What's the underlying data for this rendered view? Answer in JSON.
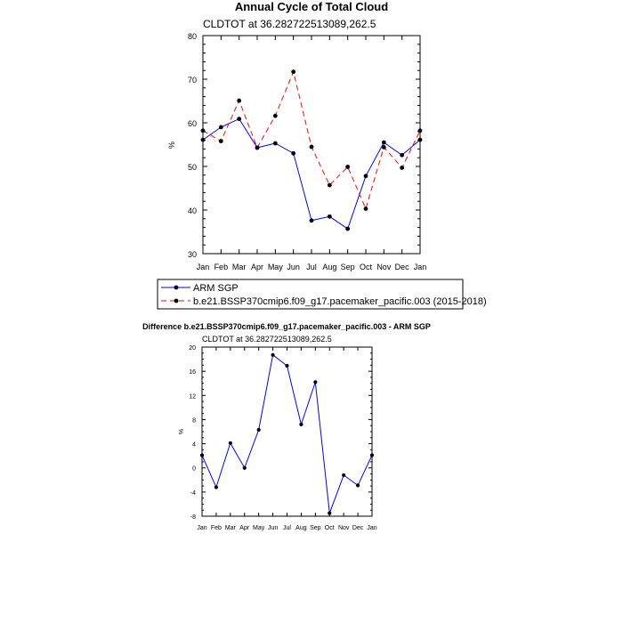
{
  "chart_data": [
    {
      "type": "line",
      "title": "Annual Cycle of Total Cloud",
      "subtitle": "CLDTOT at 36.282722513089,262.5",
      "xlabel": "",
      "ylabel": "%",
      "categories": [
        "Jan",
        "Feb",
        "Mar",
        "Apr",
        "May",
        "Jun",
        "Jul",
        "Aug",
        "Sep",
        "Oct",
        "Nov",
        "Dec",
        "Jan"
      ],
      "ylim": [
        30,
        80
      ],
      "yticks": [
        "30",
        "40",
        "50",
        "60",
        "70",
        "80"
      ],
      "series": [
        {
          "name": "ARM SGP",
          "color": "#0000ff",
          "dash": "none",
          "values": [
            56.1,
            59.0,
            60.9,
            54.3,
            55.3,
            53.0,
            37.6,
            38.5,
            35.7,
            47.8,
            55.5,
            52.6,
            56.1
          ]
        },
        {
          "name": "b.e21.BSSP370cmip6.f09_g17.pacemaker_pacific.003 (2015-2018)",
          "color": "#ff0000",
          "dash": "6,4",
          "values": [
            58.2,
            55.8,
            65.1,
            54.3,
            61.6,
            71.7,
            54.5,
            45.7,
            49.9,
            40.3,
            54.4,
            49.7,
            58.2
          ]
        }
      ],
      "legend_position": "below"
    },
    {
      "type": "line",
      "title": "Difference b.e21.BSSP370cmip6.f09_g17.pacemaker_pacific.003 - ARM SGP",
      "subtitle": "CLDTOT at 36.282722513089,262.5",
      "xlabel": "",
      "ylabel": "%",
      "categories": [
        "Jan",
        "Feb",
        "Mar",
        "Apr",
        "May",
        "Jun",
        "Jul",
        "Aug",
        "Sep",
        "Oct",
        "Nov",
        "Dec",
        "Jan"
      ],
      "ylim": [
        -8,
        20
      ],
      "yticks": [
        "-8",
        "-4",
        "0",
        "4",
        "8",
        "12",
        "16",
        "20"
      ],
      "series": [
        {
          "name": "Difference",
          "color": "#0000ff",
          "dash": "none",
          "values": [
            2.1,
            -3.2,
            4.1,
            0.0,
            6.3,
            18.7,
            16.9,
            7.2,
            14.2,
            -7.5,
            -1.2,
            -2.9,
            2.1
          ]
        }
      ]
    }
  ]
}
